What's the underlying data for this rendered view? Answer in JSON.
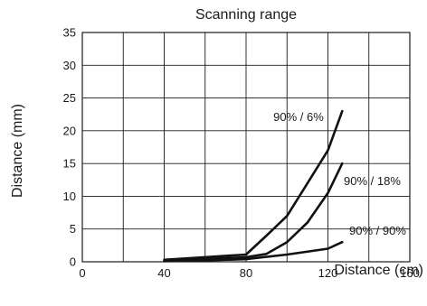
{
  "chart_data": {
    "type": "line",
    "title": "Scanning range",
    "xlabel": "Distance (cm)",
    "ylabel": "Distance (mm)",
    "xlim": [
      0,
      160
    ],
    "ylim": [
      0,
      35
    ],
    "xticks": [
      0,
      40,
      80,
      120,
      160
    ],
    "yticks": [
      0,
      5,
      10,
      15,
      20,
      25,
      30,
      35
    ],
    "xgrid": [
      0,
      20,
      40,
      60,
      80,
      100,
      120,
      140,
      160
    ],
    "ygrid": [
      0,
      5,
      10,
      15,
      20,
      25,
      30,
      35
    ],
    "grid": true,
    "line_color": "#111111",
    "series": [
      {
        "name": "90% / 6%",
        "x": [
          40,
          60,
          80,
          90,
          100,
          110,
          120,
          127
        ],
        "y": [
          0.3,
          0.7,
          1.1,
          4.0,
          7.0,
          12.0,
          17.0,
          23.0
        ]
      },
      {
        "name": "90% / 18%",
        "x": [
          40,
          60,
          80,
          90,
          100,
          110,
          120,
          127
        ],
        "y": [
          0.2,
          0.4,
          0.7,
          1.2,
          3.0,
          6.0,
          10.5,
          15.0
        ]
      },
      {
        "name": "90% / 90%",
        "x": [
          40,
          60,
          80,
          100,
          120,
          127
        ],
        "y": [
          0.1,
          0.2,
          0.4,
          1.1,
          2.0,
          3.0
        ]
      }
    ]
  }
}
